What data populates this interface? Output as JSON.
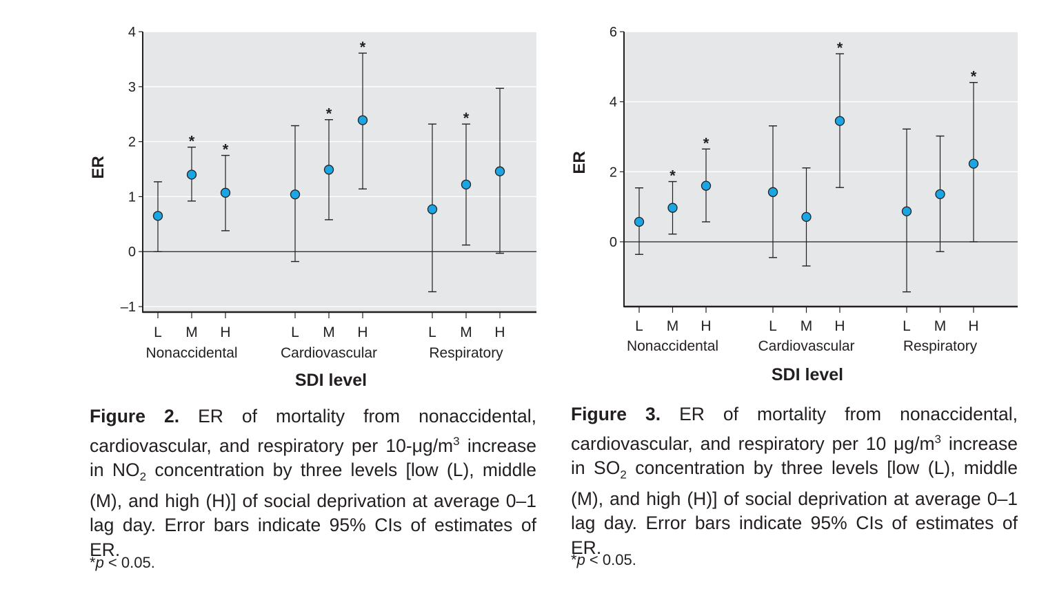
{
  "chart_data": [
    {
      "type": "errorbar",
      "ylabel": "ER",
      "xlabel": "SDI level",
      "ylim": [
        -1.1,
        4.0
      ],
      "yticks": [
        -1,
        0,
        1,
        2,
        3,
        4
      ],
      "ytick_labels": [
        "–1",
        "0",
        "1",
        "2",
        "3",
        "4"
      ],
      "grid": true,
      "groups": [
        {
          "name": "Nonaccidental",
          "points": [
            {
              "level": "L",
              "est": 0.65,
              "lo": 0.0,
              "hi": 1.27,
              "sig": false
            },
            {
              "level": "M",
              "est": 1.4,
              "lo": 0.92,
              "hi": 1.9,
              "sig": true
            },
            {
              "level": "H",
              "est": 1.07,
              "lo": 0.38,
              "hi": 1.75,
              "sig": true
            }
          ]
        },
        {
          "name": "Cardiovascular",
          "points": [
            {
              "level": "L",
              "est": 1.04,
              "lo": -0.18,
              "hi": 2.29,
              "sig": false
            },
            {
              "level": "M",
              "est": 1.49,
              "lo": 0.58,
              "hi": 2.4,
              "sig": true
            },
            {
              "level": "H",
              "est": 2.39,
              "lo": 1.14,
              "hi": 3.61,
              "sig": true
            }
          ]
        },
        {
          "name": "Respiratory",
          "points": [
            {
              "level": "L",
              "est": 0.77,
              "lo": -0.73,
              "hi": 2.32,
              "sig": false
            },
            {
              "level": "M",
              "est": 1.22,
              "lo": 0.12,
              "hi": 2.32,
              "sig": true
            },
            {
              "level": "H",
              "est": 1.46,
              "lo": -0.03,
              "hi": 2.97,
              "sig": false
            }
          ]
        }
      ]
    },
    {
      "type": "errorbar",
      "ylabel": "ER",
      "xlabel": "SDI level",
      "ylim": [
        -1.85,
        6.0
      ],
      "yticks": [
        0,
        2,
        4,
        6
      ],
      "ytick_labels": [
        "0",
        "2",
        "4",
        "6"
      ],
      "grid": true,
      "groups": [
        {
          "name": "Nonaccidental",
          "points": [
            {
              "level": "L",
              "est": 0.57,
              "lo": -0.36,
              "hi": 1.54,
              "sig": false
            },
            {
              "level": "M",
              "est": 0.97,
              "lo": 0.22,
              "hi": 1.72,
              "sig": true
            },
            {
              "level": "H",
              "est": 1.6,
              "lo": 0.57,
              "hi": 2.65,
              "sig": true
            }
          ]
        },
        {
          "name": "Cardiovascular",
          "points": [
            {
              "level": "L",
              "est": 1.42,
              "lo": -0.45,
              "hi": 3.31,
              "sig": false
            },
            {
              "level": "M",
              "est": 0.71,
              "lo": -0.69,
              "hi": 2.11,
              "sig": false
            },
            {
              "level": "H",
              "est": 3.45,
              "lo": 1.55,
              "hi": 5.37,
              "sig": true
            }
          ]
        },
        {
          "name": "Respiratory",
          "points": [
            {
              "level": "L",
              "est": 0.87,
              "lo": -1.43,
              "hi": 3.22,
              "sig": false
            },
            {
              "level": "M",
              "est": 1.36,
              "lo": -0.28,
              "hi": 3.02,
              "sig": false
            },
            {
              "level": "H",
              "est": 2.23,
              "lo": 0.0,
              "hi": 4.55,
              "sig": true
            }
          ]
        }
      ]
    }
  ],
  "sig_marker": "*",
  "captions": [
    {
      "label": "Figure 2.",
      "text_before_super": " ER of mortality from nonaccidental, cardiovascular, and respiratory per 10-μg/m",
      "super": "3",
      "text_before_sub": " increase in NO",
      "sub": "2",
      "text_after": " concentration by three levels [low (L), middle (M), and high (H)] of social deprivation at average 0–1 lag day. Error bars indicate 95% CIs of estimates of ER.",
      "footnote_star": "*",
      "footnote_p": "p",
      "footnote_rest": " < 0.05."
    },
    {
      "label": "Figure 3.",
      "text_before_super": " ER of mortality from nonaccidental, cardiovascular, and respiratory per 10 μg/m",
      "super": "3",
      "text_before_sub": " increase in SO",
      "sub": "2",
      "text_after": " concentration by three levels [low (L), middle (M), and high (H)] of social deprivation at average 0–1 lag day. Error bars indicate 95% CIs of estimates of ER.",
      "footnote_star": "*",
      "footnote_p": "p",
      "footnote_rest": " < 0.05."
    }
  ],
  "colors": {
    "plot_bg": "#e6e7e8",
    "grid": "#ffffff",
    "axis": "#231f20",
    "marker_fill": "#1ba6e3",
    "marker_stroke": "#231f20",
    "text": "#231f20"
  }
}
